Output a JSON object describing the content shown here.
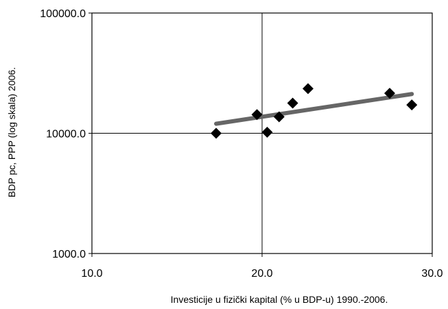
{
  "chart_data": {
    "type": "scatter",
    "title": "",
    "xlabel": "Investicije  u fizički  kapital  (% u BDP-u) 1990.-2006.",
    "ylabel": "BDP pc, PPP (log skala)  2006.",
    "x_scale": "linear",
    "y_scale": "log",
    "xlim": [
      10.0,
      30.0
    ],
    "ylim": [
      1000.0,
      100000.0
    ],
    "x_ticks": [
      "10.0",
      "20.0",
      "30.0"
    ],
    "y_ticks": [
      "1000.0",
      "10000.0",
      "100000.0"
    ],
    "grid": "major gridlines at 20.0 (x) and 10000.0 (y)",
    "legend": "none",
    "points": [
      {
        "x": 17.3,
        "y": 10000
      },
      {
        "x": 19.7,
        "y": 14300
      },
      {
        "x": 20.3,
        "y": 10200
      },
      {
        "x": 21.0,
        "y": 13700
      },
      {
        "x": 21.8,
        "y": 17800
      },
      {
        "x": 22.7,
        "y": 23500
      },
      {
        "x": 27.5,
        "y": 21500
      },
      {
        "x": 28.8,
        "y": 17200
      }
    ],
    "trendline": {
      "x": [
        17.3,
        28.8
      ],
      "y": [
        12000,
        21200
      ]
    },
    "colors": {
      "markers": "#000000",
      "trendline": "#666666",
      "axes": "#000000"
    }
  }
}
